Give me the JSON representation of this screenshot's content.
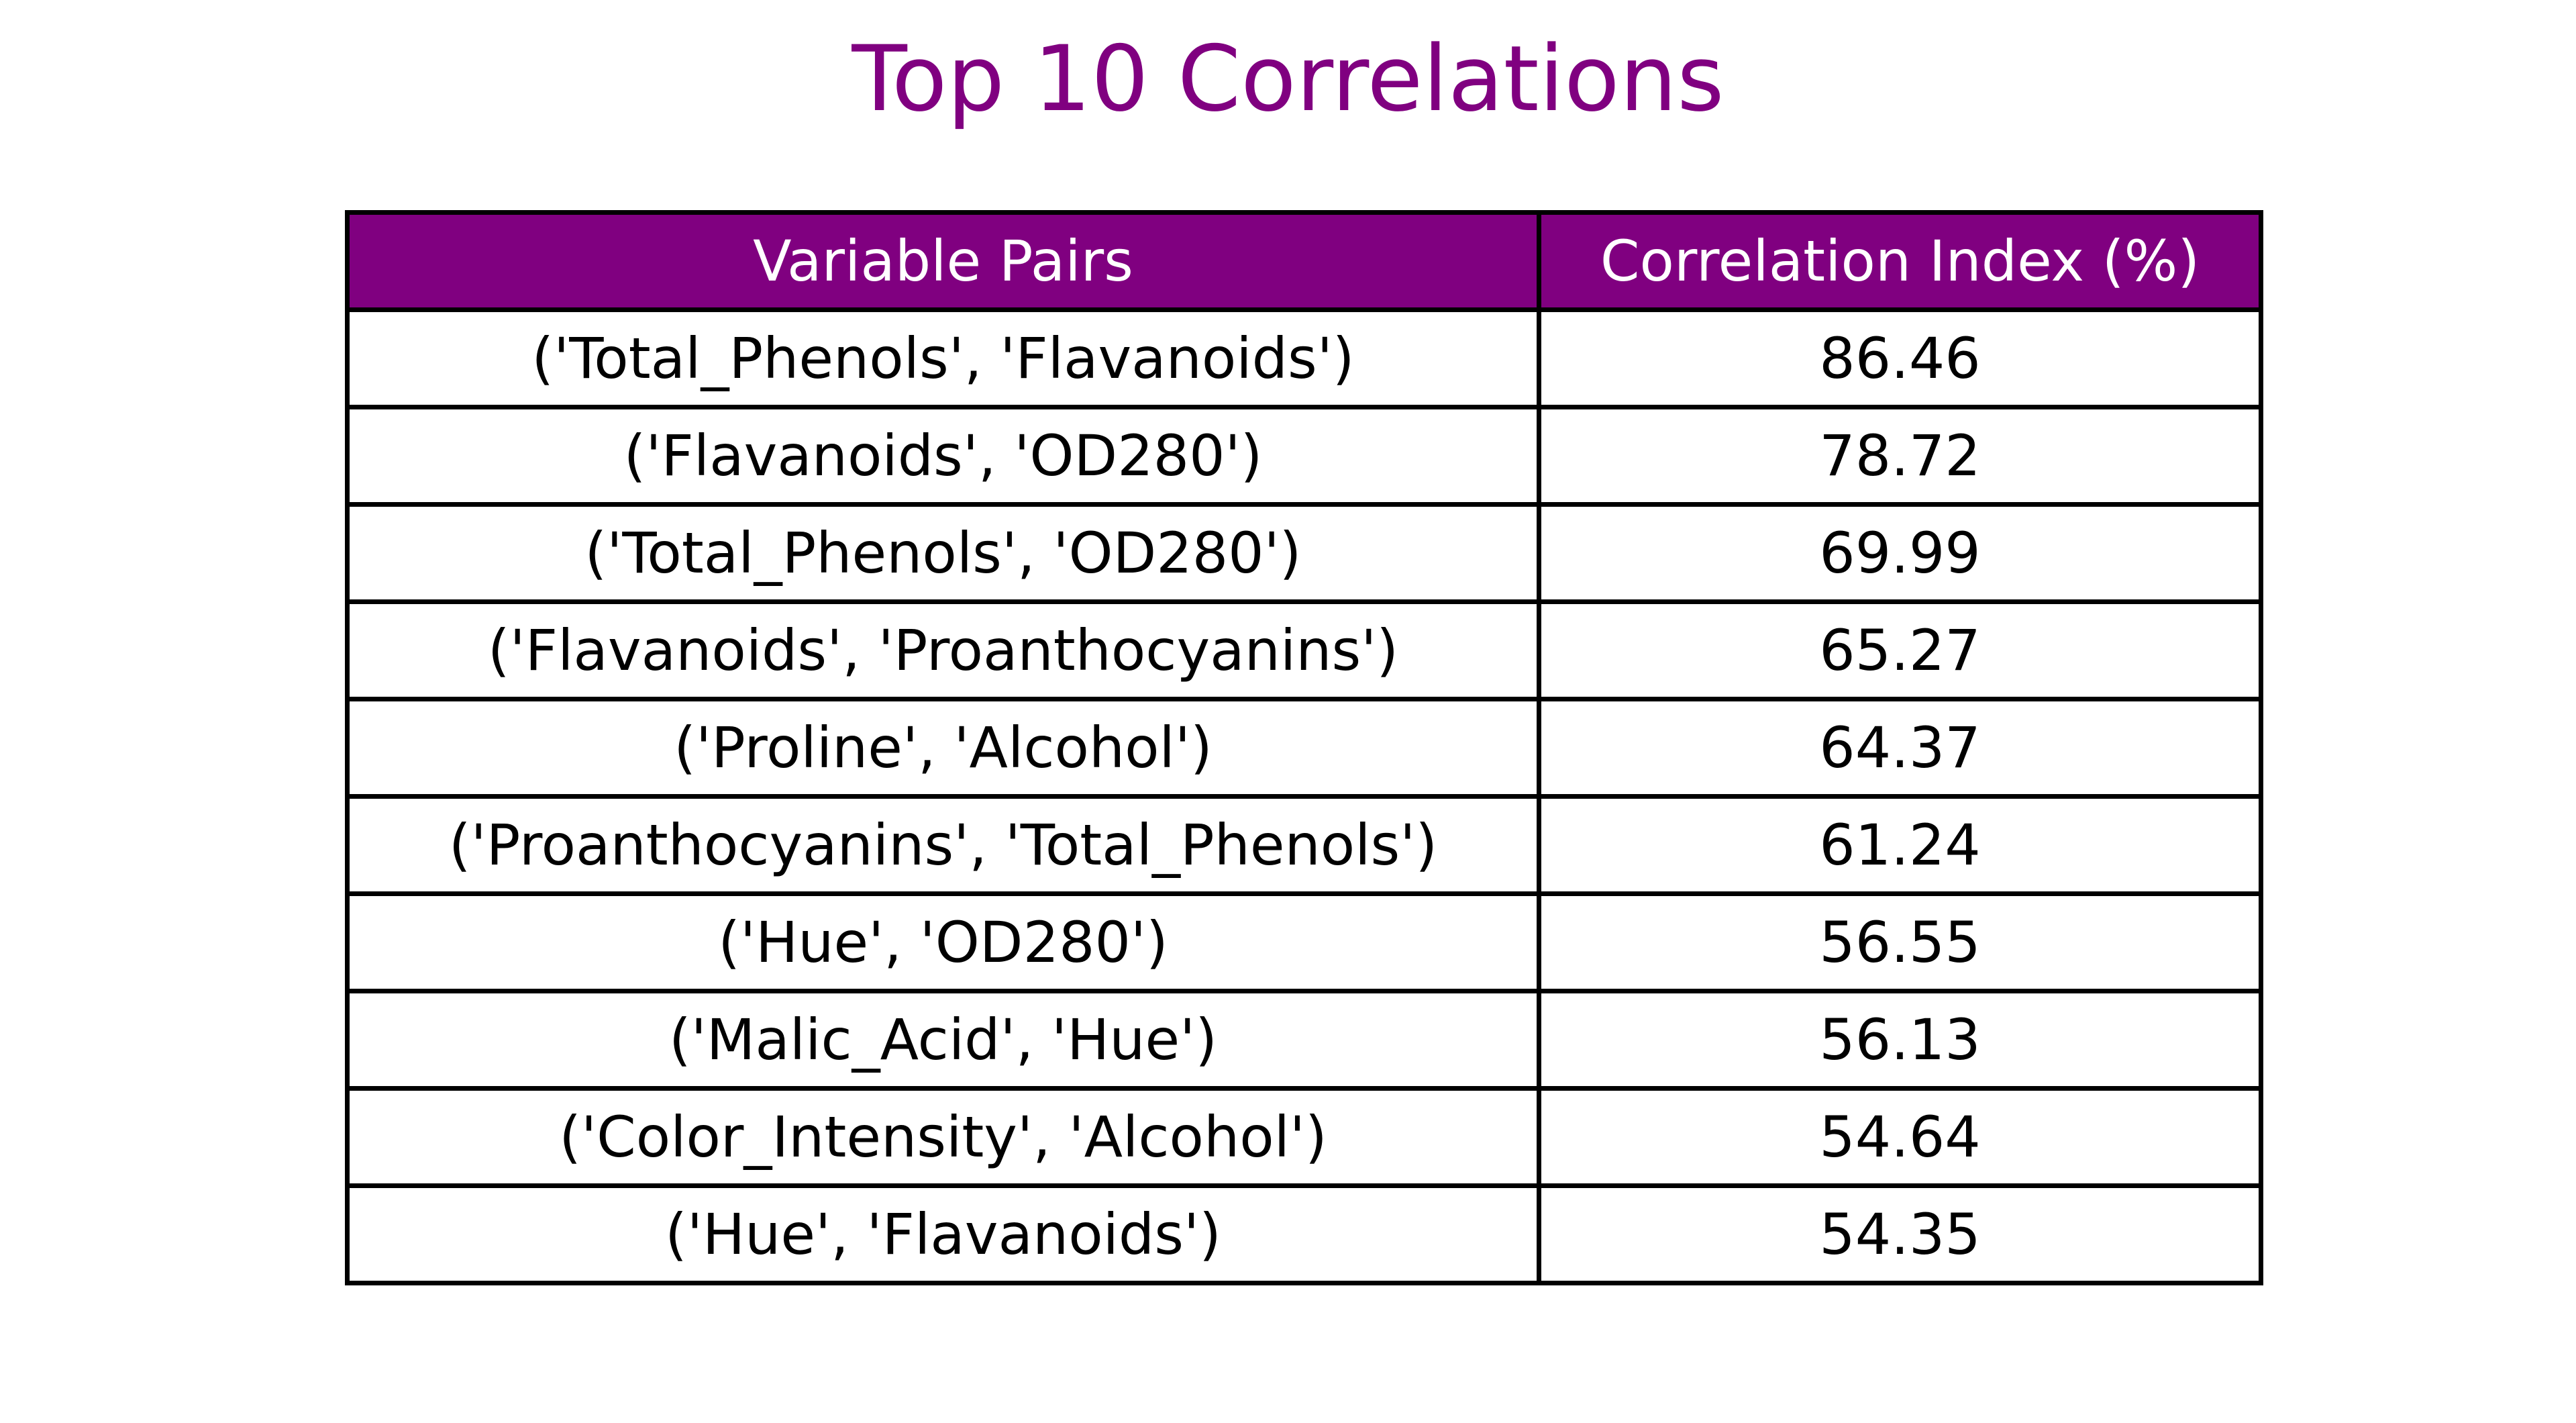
{
  "header_color": "#800080",
  "title_color": "#800080",
  "chart_data": {
    "type": "table",
    "title": "Top 10 Correlations",
    "columns": [
      "Variable Pairs",
      "Correlation Index (%)"
    ],
    "rows": [
      {
        "pair": "('Total_Phenols', 'Flavanoids')",
        "value": "86.46"
      },
      {
        "pair": "('Flavanoids', 'OD280')",
        "value": "78.72"
      },
      {
        "pair": "('Total_Phenols', 'OD280')",
        "value": "69.99"
      },
      {
        "pair": "('Flavanoids', 'Proanthocyanins')",
        "value": "65.27"
      },
      {
        "pair": "('Proline', 'Alcohol')",
        "value": "64.37"
      },
      {
        "pair": "('Proanthocyanins', 'Total_Phenols')",
        "value": "61.24"
      },
      {
        "pair": "('Hue', 'OD280')",
        "value": "56.55"
      },
      {
        "pair": "('Malic_Acid', 'Hue')",
        "value": "56.13"
      },
      {
        "pair": "('Color_Intensity', 'Alcohol')",
        "value": "54.64"
      },
      {
        "pair": "('Hue', 'Flavanoids')",
        "value": "54.35"
      }
    ]
  }
}
